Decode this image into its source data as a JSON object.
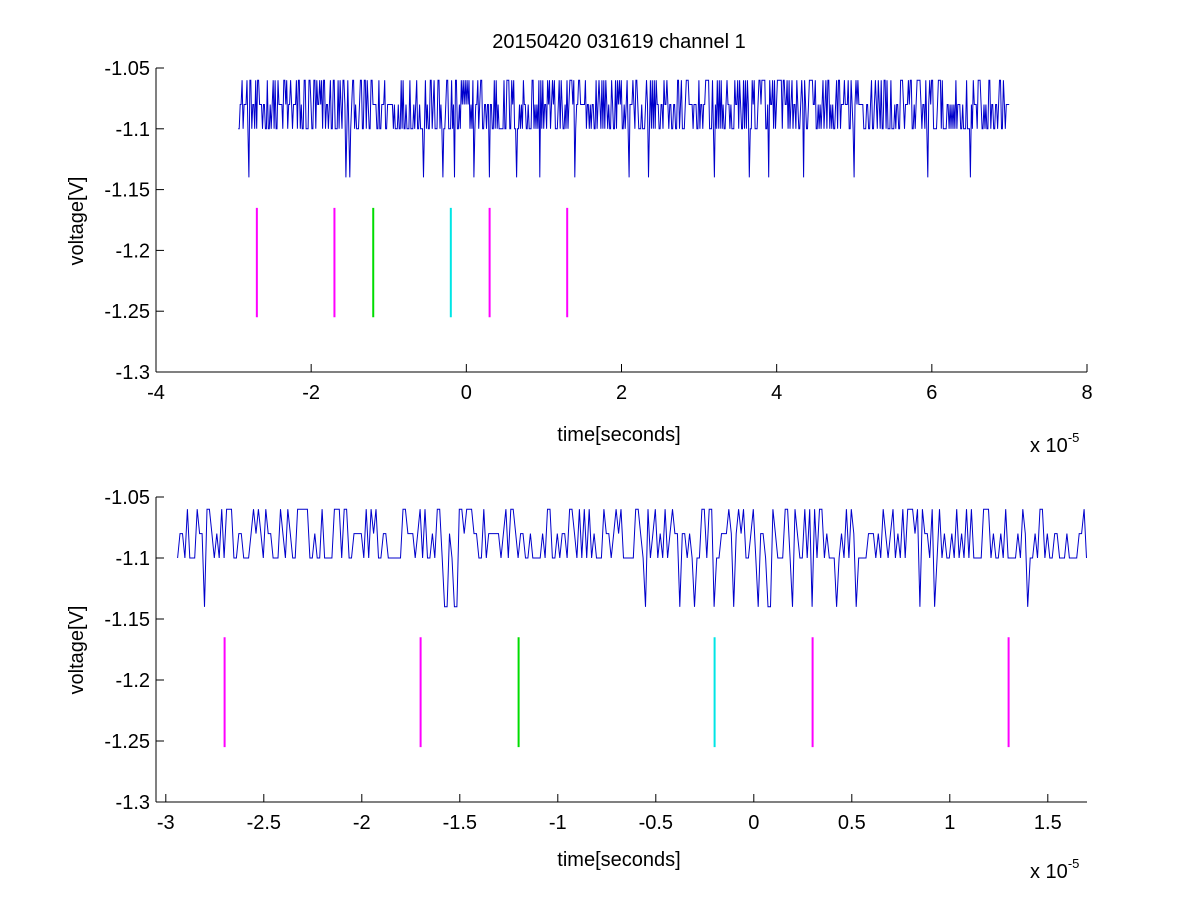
{
  "chart_data": [
    {
      "type": "line",
      "title": "20150420 031619 channel 1",
      "xlabel": "time[seconds]",
      "ylabel": "voltage[V]",
      "x_exponent_base": "x 10",
      "x_exponent": "-5",
      "xlim": [
        -4,
        8
      ],
      "ylim": [
        -1.3,
        -1.05
      ],
      "xticks": [
        -4,
        -2,
        0,
        2,
        4,
        6,
        8
      ],
      "xtick_labels": [
        "-4",
        "-2",
        "0",
        "2",
        "4",
        "6",
        "8"
      ],
      "yticks": [
        -1.05,
        -1.1,
        -1.15,
        -1.2,
        -1.25,
        -1.3
      ],
      "ytick_labels": [
        "-1.05",
        "-1.1",
        "-1.15",
        "-1.2",
        "-1.25",
        "-1.3"
      ],
      "grid": false,
      "series": [
        {
          "color": "#0000cc",
          "x_range": [
            -2.94,
            7.0
          ],
          "levels": [
            -1.06,
            -1.08,
            -1.1,
            -1.14
          ],
          "low_dips": [
            -2.8,
            -1.55,
            -1.5,
            -0.55,
            -0.3,
            -0.15,
            0.1,
            0.3,
            0.65,
            0.95,
            1.4,
            2.1,
            2.35,
            3.2,
            3.65,
            3.9,
            4.35,
            5.0,
            5.95,
            6.5
          ]
        }
      ],
      "markers": [
        {
          "x": -2.7,
          "y_range": [
            -1.255,
            -1.165
          ],
          "color": "#ff00ff"
        },
        {
          "x": -1.7,
          "y_range": [
            -1.255,
            -1.165
          ],
          "color": "#ff00ff"
        },
        {
          "x": -1.2,
          "y_range": [
            -1.255,
            -1.165
          ],
          "color": "#00dd00"
        },
        {
          "x": -0.2,
          "y_range": [
            -1.255,
            -1.165
          ],
          "color": "#00e5e5"
        },
        {
          "x": 0.3,
          "y_range": [
            -1.255,
            -1.165
          ],
          "color": "#ff00ff"
        },
        {
          "x": 1.3,
          "y_range": [
            -1.255,
            -1.165
          ],
          "color": "#ff00ff"
        }
      ]
    },
    {
      "type": "line",
      "xlabel": "time[seconds]",
      "ylabel": "voltage[V]",
      "x_exponent_base": "x 10",
      "x_exponent": "-5",
      "xlim": [
        -3.05,
        1.7
      ],
      "ylim": [
        -1.3,
        -1.05
      ],
      "xticks": [
        -3,
        -2.5,
        -2,
        -1.5,
        -1,
        -0.5,
        0,
        0.5,
        1,
        1.5
      ],
      "xtick_labels": [
        "-3",
        "-2.5",
        "-2",
        "-1.5",
        "-1",
        "-0.5",
        "0",
        "0.5",
        "1",
        "1.5"
      ],
      "yticks": [
        -1.05,
        -1.1,
        -1.15,
        -1.2,
        -1.25,
        -1.3
      ],
      "ytick_labels": [
        "-1.05",
        "-1.1",
        "-1.15",
        "-1.2",
        "-1.25",
        "-1.3"
      ],
      "grid": false,
      "series": [
        {
          "color": "#0000cc",
          "x_range": [
            -2.94,
            1.7
          ],
          "levels": [
            -1.06,
            -1.08,
            -1.1,
            -1.14
          ],
          "low_dips": [
            -2.8,
            -1.57,
            -1.52,
            -0.55,
            -0.38,
            -0.3,
            -0.2,
            -0.1,
            0.02,
            0.08,
            0.2,
            0.3,
            0.42,
            0.52,
            0.85,
            0.92,
            1.4
          ]
        }
      ],
      "markers": [
        {
          "x": -2.7,
          "y_range": [
            -1.255,
            -1.165
          ],
          "color": "#ff00ff"
        },
        {
          "x": -1.7,
          "y_range": [
            -1.255,
            -1.165
          ],
          "color": "#ff00ff"
        },
        {
          "x": -1.2,
          "y_range": [
            -1.255,
            -1.165
          ],
          "color": "#00dd00"
        },
        {
          "x": -0.2,
          "y_range": [
            -1.255,
            -1.165
          ],
          "color": "#00e5e5"
        },
        {
          "x": 0.3,
          "y_range": [
            -1.255,
            -1.165
          ],
          "color": "#ff00ff"
        },
        {
          "x": 1.3,
          "y_range": [
            -1.255,
            -1.165
          ],
          "color": "#ff00ff"
        }
      ]
    }
  ]
}
